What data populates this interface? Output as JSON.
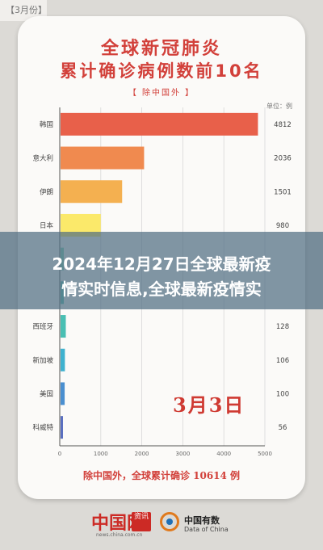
{
  "tag": "【3月份】",
  "titles": {
    "line1": "全球新冠肺炎",
    "line2": "累计确诊病例数前10名",
    "subtitle": "【 除中国外 】"
  },
  "unit_label": "单位：例",
  "date_stamp": "3月3日",
  "total_text": "除中国外，全球累计确诊 10614 例",
  "banner": {
    "line1": "2024年12月27日全球最新疫",
    "line2": "情实时信息,全球最新疫情实"
  },
  "logos": {
    "china_net": "中国网",
    "zixun": "资讯",
    "china_net_url": "news.china.com.cn",
    "data_china_name": "中国有数",
    "data_china_en": "Data of China"
  },
  "chart_data": {
    "type": "bar",
    "orientation": "horizontal",
    "title": "全球新冠肺炎累计确诊病例数前10名",
    "categories": [
      "韩国",
      "意大利",
      "伊朗",
      "日本",
      "",
      "",
      "西班牙",
      "新加坡",
      "美国",
      "科威特"
    ],
    "values": [
      4812,
      2036,
      1501,
      980,
      null,
      null,
      128,
      106,
      100,
      56
    ],
    "value_labels": [
      "4812",
      "2036",
      "1501",
      "980",
      "",
      "",
      "128",
      "106",
      "100",
      "56"
    ],
    "visible": [
      true,
      true,
      true,
      true,
      false,
      false,
      true,
      true,
      true,
      true
    ],
    "colors": [
      "#e8604a",
      "#f08a4f",
      "#f4b050",
      "#fbe96a",
      "#7fd3b8",
      "#5fc7b8",
      "#49bfb3",
      "#3fb2cf",
      "#4a8fd0",
      "#5a6fc0"
    ],
    "xlim": [
      0,
      5000
    ],
    "xticks": [
      "0",
      "1000",
      "2000",
      "3000",
      "4000",
      "5000"
    ],
    "grid": true
  }
}
